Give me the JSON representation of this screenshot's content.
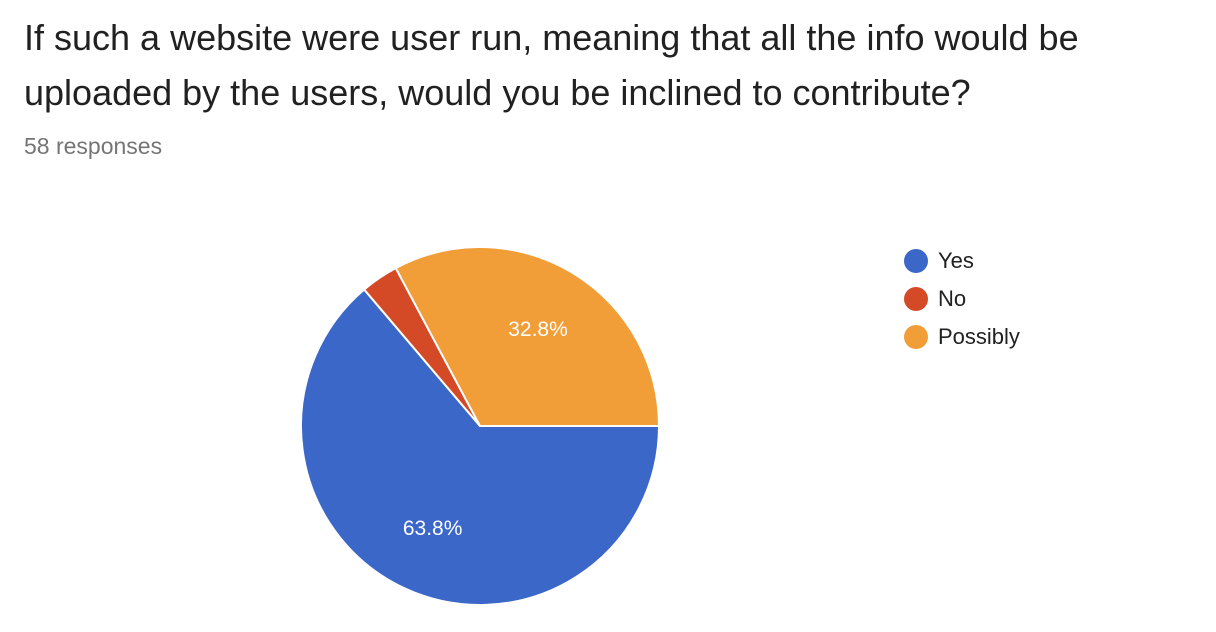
{
  "header": {
    "title": "If such a website were user run, meaning that all the info would be uploaded by the users, would you be inclined to contribute?",
    "response_count": "58 responses"
  },
  "chart_data": {
    "type": "pie",
    "title": "If such a website were user run, meaning that all the info would be uploaded by the users, would you be inclined to contribute?",
    "total_responses": 58,
    "legend_position": "right",
    "categories": [
      "Yes",
      "No",
      "Possibly"
    ],
    "values": [
      63.8,
      3.4,
      32.8
    ],
    "data_labels": [
      "63.8%",
      "",
      "32.8%"
    ],
    "colors": [
      "#3a67c8",
      "#d54a26",
      "#f29e38"
    ]
  },
  "legend": {
    "items": [
      {
        "label": "Yes",
        "color": "#3a67c8"
      },
      {
        "label": "No",
        "color": "#d54a26"
      },
      {
        "label": "Possibly",
        "color": "#f29e38"
      }
    ]
  }
}
